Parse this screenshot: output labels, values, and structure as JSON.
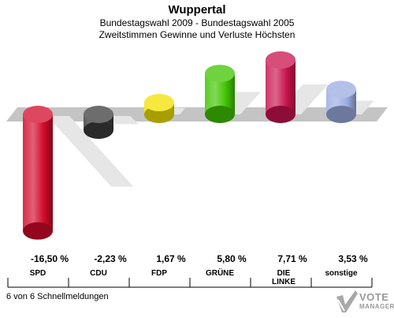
{
  "title": "Wuppertal",
  "subtitle1": "Bundestagswahl 2009 - Bundestagswahl 2005",
  "subtitle2": "Zweitstimmen Gewinne und Verluste Höchsten",
  "footer_note": "6 von 6 Schnellmeldungen",
  "logo": {
    "line1": "VOTE",
    "line2": "MANAGER"
  },
  "chart_data": {
    "type": "bar",
    "categories": [
      "SPD",
      "CDU",
      "FDP",
      "GRÜNE",
      "DIE LINKE",
      "sonstige"
    ],
    "category_lines": [
      [
        "SPD"
      ],
      [
        "CDU"
      ],
      [
        "FDP"
      ],
      [
        "GRÜNE"
      ],
      [
        "DIE",
        "LINKE"
      ],
      [
        "sonstige"
      ]
    ],
    "values": [
      -16.5,
      -2.23,
      1.67,
      5.8,
      7.71,
      3.53
    ],
    "value_labels": [
      "-16,50 %",
      "-2,23 %",
      "1,67 %",
      "5,80 %",
      "7,71 %",
      "3,53 %"
    ],
    "colors": [
      "#d10a2a",
      "#3c3c3c",
      "#f2e200",
      "#3fc400",
      "#c8134e",
      "#9aabe0"
    ],
    "unit": "%"
  }
}
